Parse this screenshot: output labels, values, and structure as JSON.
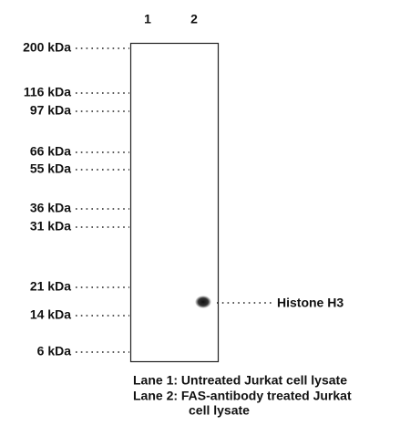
{
  "lanes": [
    "1",
    "2"
  ],
  "markers": [
    "200 kDa",
    "116 kDa",
    "97 kDa",
    "66 kDa",
    "55 kDa",
    "36 kDa",
    "31 kDa",
    "21 kDa",
    "14 kDa",
    "6 kDa"
  ],
  "band": {
    "label": "Histone H3"
  },
  "legend": [
    "Lane 1: Untreated Jurkat cell lysate",
    "Lane 2: FAS-antibody treated Jurkat",
    "cell lysate"
  ]
}
